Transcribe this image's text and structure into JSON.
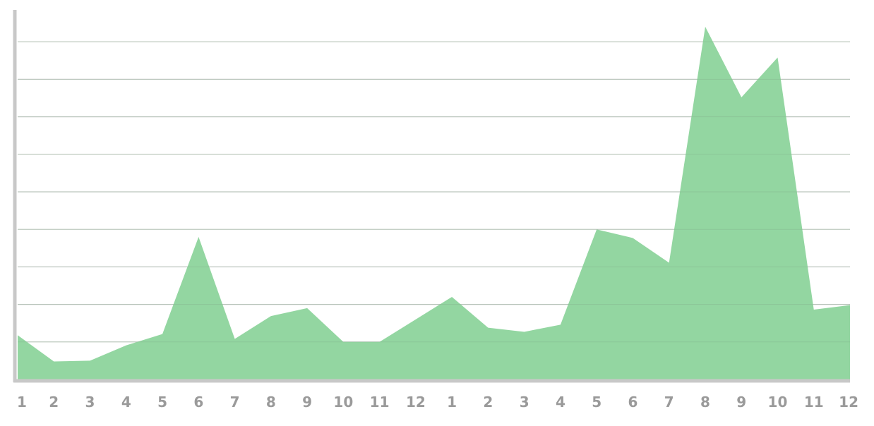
{
  "chart_data": {
    "type": "area",
    "title": "",
    "xlabel": "",
    "ylabel": "",
    "categories": [
      "1",
      "2",
      "3",
      "4",
      "5",
      "6",
      "7",
      "8",
      "9",
      "10",
      "11",
      "12",
      "1",
      "2",
      "3",
      "4",
      "5",
      "6",
      "7",
      "8",
      "9",
      "10",
      "11",
      "12"
    ],
    "x_tick_labels": [
      "1",
      "2",
      "3",
      "4",
      "5",
      "6",
      "7",
      "8",
      "9",
      "10",
      "11",
      "12",
      "1",
      "2",
      "3",
      "4",
      "5",
      "6",
      "7",
      "8",
      "9",
      "10",
      "11",
      "12"
    ],
    "series": [
      {
        "values": [
          1.18,
          0.48,
          0.5,
          0.91,
          1.21,
          3.8,
          1.08,
          1.69,
          1.9,
          1.0,
          1.0,
          1.6,
          2.2,
          1.38,
          1.27,
          1.46,
          4.0,
          3.77,
          3.11,
          9.4,
          7.52,
          8.58,
          1.86,
          1.98
        ]
      }
    ],
    "ylim": [
      0,
      10
    ],
    "y_gridlines": [
      1,
      2,
      3,
      4,
      5,
      6,
      7,
      8,
      9
    ],
    "y_tick_labels_visible": false,
    "grid": true,
    "legend": "none",
    "colors": {
      "area": "#93d6a1",
      "gridline": "#d2d2d2",
      "axis": "#c8c8c8",
      "tick_label": "#9a9a9a"
    }
  }
}
